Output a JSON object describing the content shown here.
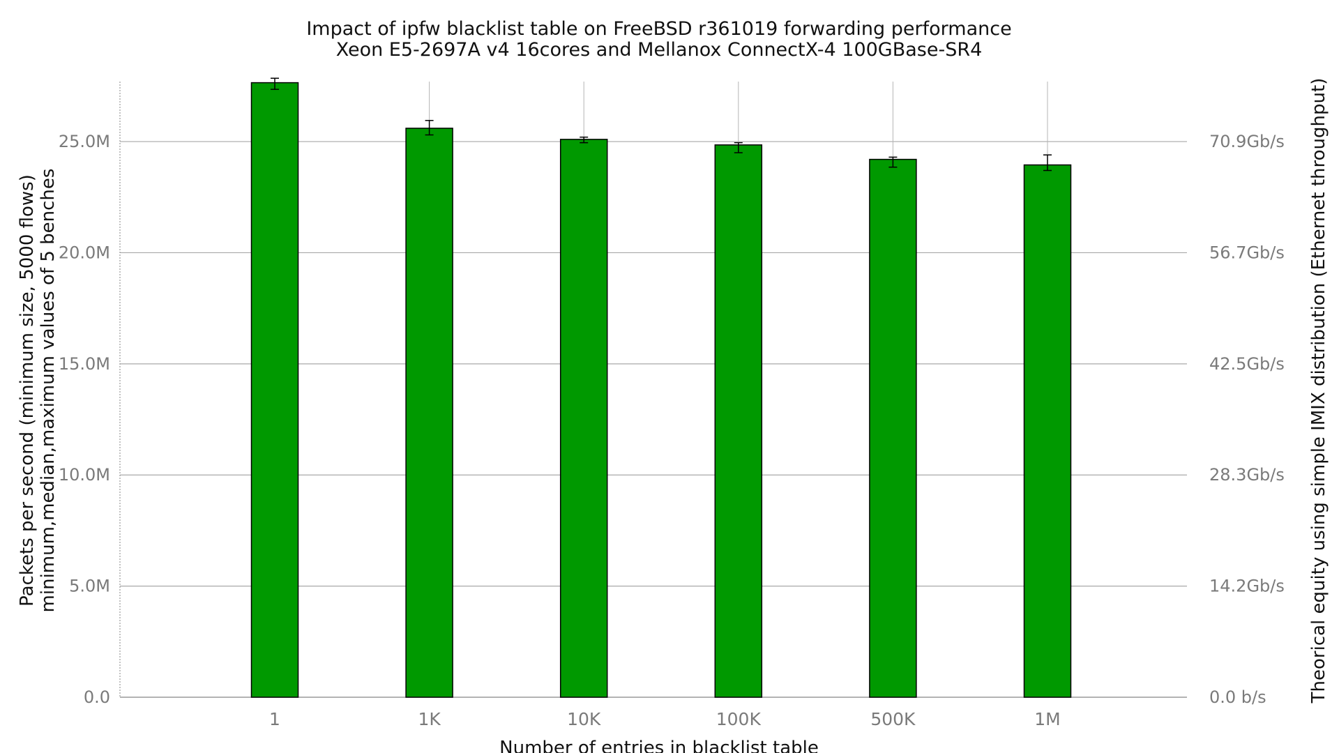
{
  "chart_data": {
    "type": "bar",
    "title": "Impact of ipfw blacklist table on FreeBSD r361019 forwarding performance",
    "subtitle": "Xeon E5-2697A v4 16cores and Mellanox ConnectX-4 100GBase-SR4",
    "xlabel": "Number of entries in blacklist table",
    "ylabel": "Packets per second (minimum size, 5000 flows)",
    "ylabel_sub": "minimum,median,maximum values of 5 benches",
    "y2label": "Theorical equity using simple IMIX distribution (Ethernet throughput)",
    "categories": [
      "1",
      "1K",
      "10K",
      "100K",
      "500K",
      "1M"
    ],
    "values": [
      27.65,
      25.6,
      25.1,
      24.85,
      24.2,
      23.95
    ],
    "min": [
      27.35,
      25.3,
      24.95,
      24.5,
      23.85,
      23.7
    ],
    "max": [
      27.85,
      25.95,
      25.2,
      24.95,
      24.3,
      24.4
    ],
    "unit": "M packets/s",
    "ylim": [
      0,
      27.7
    ],
    "yticks": [
      0,
      5,
      10,
      15,
      20,
      25
    ],
    "ytick_labels": [
      "0.0",
      "5.0M",
      "10.0M",
      "15.0M",
      "20.0M",
      "25.0M"
    ],
    "y2tick_labels": [
      "0.0 b/s",
      "14.2Gb/s",
      "28.3Gb/s",
      "42.5Gb/s",
      "56.7Gb/s",
      "70.9Gb/s"
    ],
    "bar_color": "#009900",
    "grid": true,
    "legend": "none"
  }
}
